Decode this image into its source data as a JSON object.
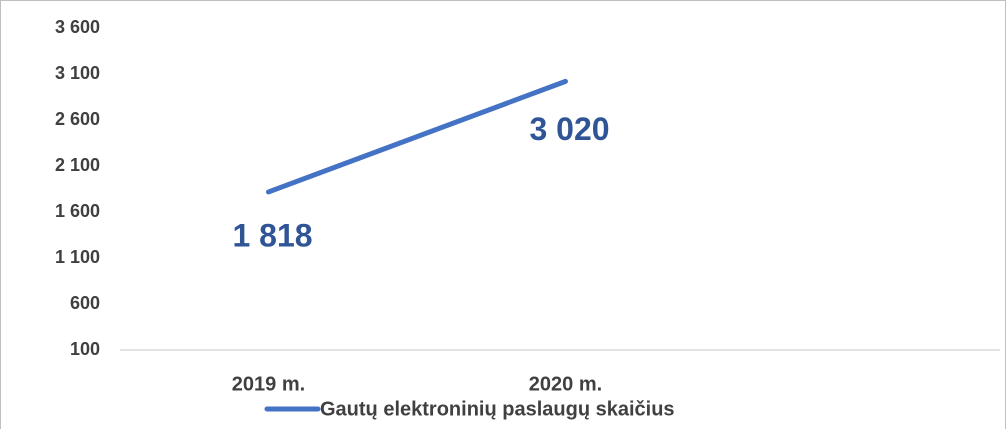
{
  "chart_data": {
    "type": "line",
    "categories": [
      "2019 m.",
      "2020 m."
    ],
    "series": [
      {
        "name": "Gautų elektroninių paslaugų skaičius",
        "color": "#4472c4",
        "values": [
          1818,
          3020
        ],
        "value_labels": [
          "1 818",
          "3 020"
        ]
      }
    ],
    "ylim": [
      100,
      3600
    ],
    "yticks": [
      100,
      600,
      {
        "value": 1100,
        "label": "1 100"
      },
      {
        "value": 1600,
        "label": "1 600"
      },
      {
        "value": 2100,
        "label": "2 100"
      },
      {
        "value": 2600,
        "label": "2 600"
      },
      {
        "value": 3100,
        "label": "3 100"
      },
      {
        "value": 3600,
        "label": "3 600"
      }
    ],
    "grid": false,
    "legend": "bottom"
  }
}
